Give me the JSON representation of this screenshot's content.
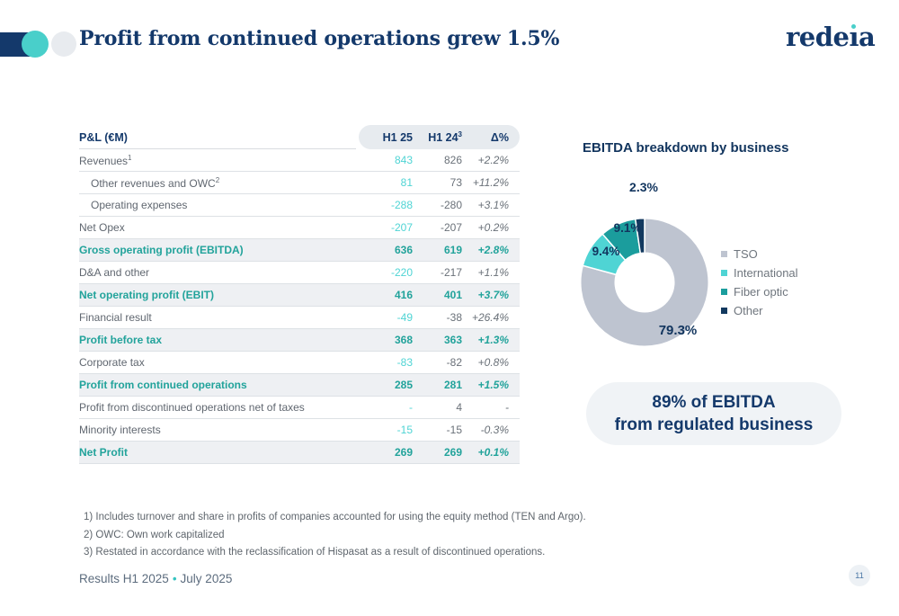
{
  "header": {
    "title": "Profit from continued operations grew 1.5%",
    "brand": {
      "pre": "rede",
      "dotless_i": "ı",
      "post": "a"
    }
  },
  "table": {
    "title": "P&L (€M)",
    "columns": [
      {
        "label": "H1 25",
        "sup": ""
      },
      {
        "label": "H1 24",
        "sup": "3"
      },
      {
        "label": "Δ%",
        "sup": ""
      }
    ],
    "rows": [
      {
        "label": "Revenues",
        "sup": "1",
        "indent": false,
        "bold": false,
        "v1": "843",
        "v2": "826",
        "delta": "+2.2%"
      },
      {
        "label": "Other revenues and OWC",
        "sup": "2",
        "indent": true,
        "bold": false,
        "v1": "81",
        "v2": "73",
        "delta": "+11.2%"
      },
      {
        "label": "Operating expenses",
        "sup": "",
        "indent": true,
        "bold": false,
        "v1": "-288",
        "v2": "-280",
        "delta": "+3.1%"
      },
      {
        "label": "Net Opex",
        "sup": "",
        "indent": false,
        "bold": false,
        "v1": "-207",
        "v2": "-207",
        "delta": "+0.2%"
      },
      {
        "label": "Gross operating profit (EBITDA)",
        "sup": "",
        "indent": false,
        "bold": true,
        "v1": "636",
        "v2": "619",
        "delta": "+2.8%"
      },
      {
        "label": "D&A and other",
        "sup": "",
        "indent": false,
        "bold": false,
        "v1": "-220",
        "v2": "-217",
        "delta": "+1.1%"
      },
      {
        "label": "Net operating profit (EBIT)",
        "sup": "",
        "indent": false,
        "bold": true,
        "v1": "416",
        "v2": "401",
        "delta": "+3.7%"
      },
      {
        "label": "Financial result",
        "sup": "",
        "indent": false,
        "bold": false,
        "v1": "-49",
        "v2": "-38",
        "delta": "+26.4%"
      },
      {
        "label": "Profit before tax",
        "sup": "",
        "indent": false,
        "bold": true,
        "v1": "368",
        "v2": "363",
        "delta": "+1.3%"
      },
      {
        "label": "Corporate tax",
        "sup": "",
        "indent": false,
        "bold": false,
        "v1": "-83",
        "v2": "-82",
        "delta": "+0.8%"
      },
      {
        "label": "Profit from continued operations",
        "sup": "",
        "indent": false,
        "bold": true,
        "v1": "285",
        "v2": "281",
        "delta": "+1.5%"
      },
      {
        "label": "Profit from discontinued operations net of taxes",
        "sup": "",
        "indent": false,
        "bold": false,
        "v1": "-",
        "v2": "4",
        "delta": "-"
      },
      {
        "label": "Minority interests",
        "sup": "",
        "indent": false,
        "bold": false,
        "v1": "-15",
        "v2": "-15",
        "delta": "-0.3%"
      },
      {
        "label": "Net Profit",
        "sup": "",
        "indent": false,
        "bold": true,
        "v1": "269",
        "v2": "269",
        "delta": "+0.1%"
      }
    ]
  },
  "chart_data": {
    "type": "pie",
    "subtype": "donut",
    "title": "EBITDA breakdown by business",
    "categories": [
      "TSO",
      "International",
      "Fiber optic",
      "Other"
    ],
    "values": [
      79.3,
      9.4,
      9.1,
      2.3
    ],
    "labels": [
      "79.3%",
      "9.4%",
      "9.1%",
      "2.3%"
    ],
    "colors": [
      "#BEC4D0",
      "#4FD4D4",
      "#1B9D9D",
      "#12395F"
    ],
    "legend_position": "right",
    "start_angle_deg": 0,
    "direction": "clockwise",
    "inner_radius_ratio": 0.46,
    "label_radius_ratio": [
      0.72,
      0.8,
      0.78,
      1.22
    ]
  },
  "highlight": {
    "line1": "89% of EBITDA",
    "line2": "from regulated business"
  },
  "footnotes": [
    "1) Includes turnover and share in profits of companies accounted for using the equity method (TEN and Argo).",
    "2) OWC: Own work capitalized",
    "3) Restated in accordance with the reclassification of Hispasat as a result of discontinued operations."
  ],
  "footer": {
    "left": "Results H1 2025",
    "separator": "•",
    "right": "July 2025",
    "page": "11"
  },
  "colors": {
    "navy": "#14396B",
    "teal_accent": "#4FD4D4",
    "teal_bold": "#22A39B",
    "gray_text": "#606770"
  }
}
